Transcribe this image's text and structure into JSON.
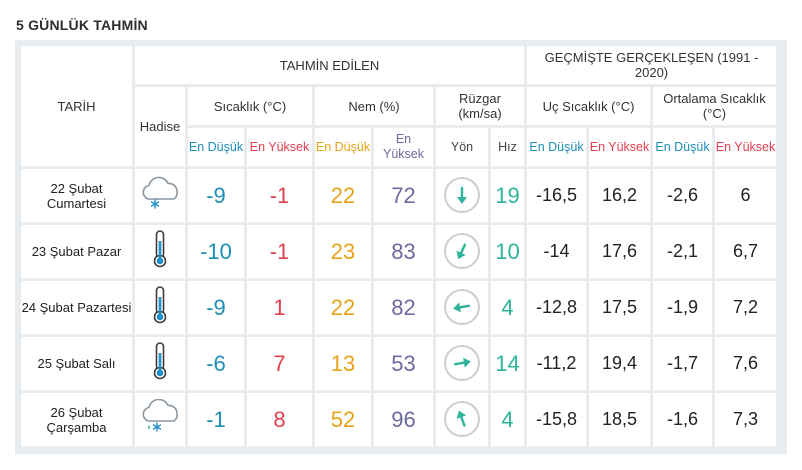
{
  "title": "5 GÜNLÜK TAHMİN",
  "header": {
    "date": "TARİH",
    "forecast": "TAHMİN EDİLEN",
    "history": "GEÇMİŞTE GERÇEKLEŞEN (1991 - 2020)",
    "event": "Hadise",
    "temperature": "Sıcaklık (°C)",
    "humidity": "Nem (%)",
    "wind": "Rüzgar (km/sa)",
    "extreme_temp": "Uç Sıcaklık (°C)",
    "average_temp": "Ortalama Sıcaklık (°C)",
    "low": "En Düşük",
    "high": "En Yüksek",
    "direction": "Yön",
    "speed": "Hız"
  },
  "rows": [
    {
      "date": "22 Şubat Cumartesi",
      "icon": "cloud-snow-icon",
      "tmin": "-9",
      "tmax": "-1",
      "hmin": "22",
      "hmax": "72",
      "wind_dir": "south",
      "wind_rot": 180,
      "wind_speed": "19",
      "ext_min": "-16,5",
      "ext_max": "16,2",
      "avg_min": "-2,6",
      "avg_max": "6"
    },
    {
      "date": "23 Şubat Pazar",
      "icon": "thermometer-icon",
      "tmin": "-10",
      "tmax": "-1",
      "hmin": "23",
      "hmax": "83",
      "wind_dir": "south-southwest",
      "wind_rot": 205,
      "wind_speed": "10",
      "ext_min": "-14",
      "ext_max": "17,6",
      "avg_min": "-2,1",
      "avg_max": "6,7"
    },
    {
      "date": "24 Şubat Pazartesi",
      "icon": "thermometer-icon",
      "tmin": "-9",
      "tmax": "1",
      "hmin": "22",
      "hmax": "82",
      "wind_dir": "west",
      "wind_rot": 260,
      "wind_speed": "4",
      "ext_min": "-12,8",
      "ext_max": "17,5",
      "avg_min": "-1,9",
      "avg_max": "7,2"
    },
    {
      "date": "25 Şubat Salı",
      "icon": "thermometer-icon",
      "tmin": "-6",
      "tmax": "7",
      "hmin": "13",
      "hmax": "53",
      "wind_dir": "east",
      "wind_rot": 80,
      "wind_speed": "14",
      "ext_min": "-11,2",
      "ext_max": "19,4",
      "avg_min": "-1,7",
      "avg_max": "7,6"
    },
    {
      "date": "26 Şubat Çarşamba",
      "icon": "cloud-rain-snow-icon",
      "tmin": "-1",
      "tmax": "8",
      "hmin": "52",
      "hmax": "96",
      "wind_dir": "north-northwest",
      "wind_rot": 340,
      "wind_speed": "4",
      "ext_min": "-15,8",
      "ext_max": "18,5",
      "avg_min": "-1,6",
      "avg_max": "7,3"
    }
  ],
  "colors": {
    "low": "#1d8fb5",
    "high": "#e2404f",
    "humidity_low": "#e8a21a",
    "humidity_high": "#6d6aa0",
    "wind": "#2fb39a",
    "panel": "#e8ecef"
  }
}
